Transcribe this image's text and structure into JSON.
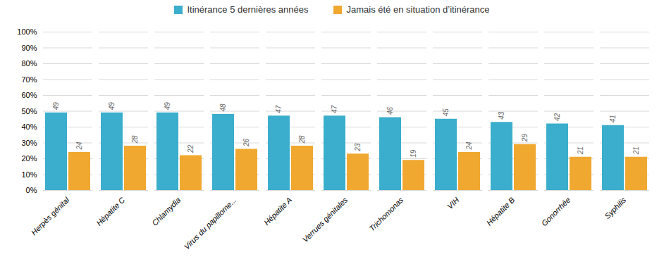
{
  "chart_data": {
    "type": "bar",
    "categories": [
      "Herpès génital",
      "Hépatite C",
      "Chlamydia",
      "Virus du papillome...",
      "Hépatite A",
      "Verrues génitales",
      "Trichomonas",
      "VIH",
      "Hépatite B",
      "Gonorrhée",
      "Syphilis"
    ],
    "series": [
      {
        "name": "Itinérance 5 dernières années",
        "color": "#3aaecc",
        "values": [
          49,
          49,
          49,
          48,
          47,
          47,
          46,
          45,
          43,
          42,
          41
        ]
      },
      {
        "name": "Jamais été en situation d’itinérance",
        "color": "#f0a830",
        "values": [
          24,
          28,
          22,
          26,
          28,
          23,
          19,
          24,
          29,
          21,
          21
        ]
      }
    ],
    "ylim": [
      0,
      100
    ],
    "yticks": [
      {
        "value": 0,
        "label": "0%"
      },
      {
        "value": 10,
        "label": "10%"
      },
      {
        "value": 20,
        "label": "20%"
      },
      {
        "value": 30,
        "label": "30%"
      },
      {
        "value": 40,
        "label": "40%"
      },
      {
        "value": 50,
        "label": "50%"
      },
      {
        "value": 60,
        "label": "60%"
      },
      {
        "value": 70,
        "label": "70%"
      },
      {
        "value": 80,
        "label": "80%"
      },
      {
        "value": 90,
        "label": "90%"
      },
      {
        "value": 100,
        "label": "100%"
      }
    ],
    "grid": true,
    "legend": "top",
    "data_labels": true
  }
}
